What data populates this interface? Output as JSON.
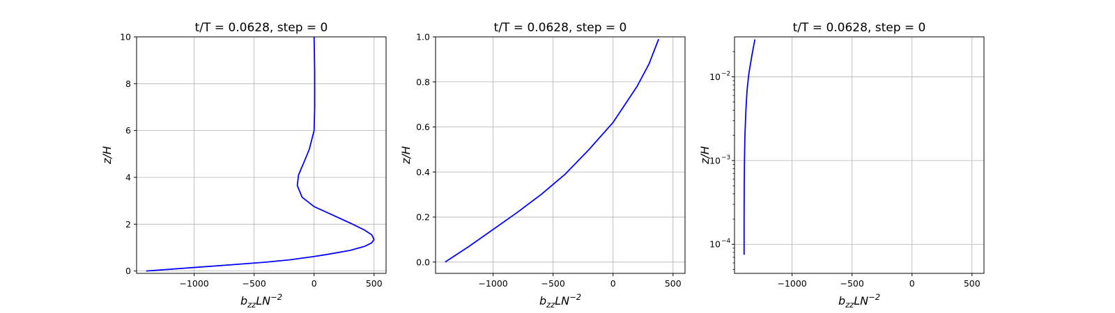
{
  "chart_data": [
    {
      "type": "line",
      "title": "t/T = 0.0628, step = 0",
      "xlabel": "b_zz L N^-2",
      "ylabel": "z/H",
      "xlim": [
        -1480,
        600
      ],
      "ylim": [
        -0.1,
        10
      ],
      "xticks": [
        -1000,
        -500,
        0,
        500
      ],
      "xtick_labels": [
        "−1000",
        "−500",
        "0",
        "500"
      ],
      "yticks": [
        0,
        2,
        4,
        6,
        8,
        10
      ],
      "ytick_labels": [
        "0",
        "2",
        "4",
        "6",
        "8",
        "10"
      ],
      "yscale": "linear",
      "grid": true,
      "series": [
        {
          "color": "#0000ff",
          "x": [
            -1400,
            -1000,
            -600,
            -400,
            -200,
            0,
            100,
            300,
            420,
            480,
            500,
            480,
            420,
            300,
            150,
            0,
            -100,
            -140,
            -130,
            -80,
            -40,
            0,
            5,
            5,
            0
          ],
          "y": [
            0,
            0.15,
            0.3,
            0.38,
            0.48,
            0.62,
            0.7,
            0.88,
            1.05,
            1.2,
            1.35,
            1.55,
            1.75,
            2.05,
            2.4,
            2.75,
            3.15,
            3.65,
            4.1,
            4.7,
            5.2,
            6.0,
            7.0,
            8.5,
            10.0
          ]
        }
      ]
    },
    {
      "type": "line",
      "title": "t/T = 0.0628, step = 0",
      "xlabel": "b_zz L N^-2",
      "ylabel": "z/H",
      "xlim": [
        -1480,
        600
      ],
      "ylim": [
        -0.05,
        1.0
      ],
      "xticks": [
        -1000,
        -500,
        0,
        500
      ],
      "xtick_labels": [
        "−1000",
        "−500",
        "0",
        "500"
      ],
      "yticks": [
        0.0,
        0.2,
        0.4,
        0.6,
        0.8,
        1.0
      ],
      "ytick_labels": [
        "0.0",
        "0.2",
        "0.4",
        "0.6",
        "0.8",
        "1.0"
      ],
      "yscale": "linear",
      "grid": true,
      "series": [
        {
          "color": "#0000ff",
          "x": [
            -1400,
            -1200,
            -1000,
            -800,
            -600,
            -400,
            -200,
            0,
            100,
            200,
            300,
            380
          ],
          "y": [
            0,
            0.07,
            0.145,
            0.22,
            0.3,
            0.39,
            0.5,
            0.62,
            0.7,
            0.78,
            0.88,
            0.99
          ]
        }
      ]
    },
    {
      "type": "line",
      "title": "t/T = 0.0628, step = 0",
      "xlabel": "b_zz L N^-2",
      "ylabel": "z/H",
      "xlim": [
        -1480,
        600
      ],
      "ylim": [
        4.5e-05,
        0.03
      ],
      "xticks": [
        -1000,
        -500,
        0,
        500
      ],
      "xtick_labels": [
        "−1000",
        "−500",
        "0",
        "500"
      ],
      "yticks": [
        0.0001,
        0.001,
        0.01
      ],
      "ytick_labels": [
        "10",
        "10",
        "10"
      ],
      "ytick_exponents": [
        "−4",
        "−3",
        "−2"
      ],
      "yscale": "log",
      "grid": true,
      "series": [
        {
          "color": "#0000ff",
          "x": [
            -1400,
            -1400,
            -1399,
            -1397,
            -1393,
            -1385,
            -1375,
            -1360,
            -1335,
            -1310
          ],
          "y": [
            7.5e-05,
            0.0002,
            0.0005,
            0.001,
            0.002,
            0.004,
            0.007,
            0.011,
            0.018,
            0.028
          ]
        }
      ]
    }
  ]
}
